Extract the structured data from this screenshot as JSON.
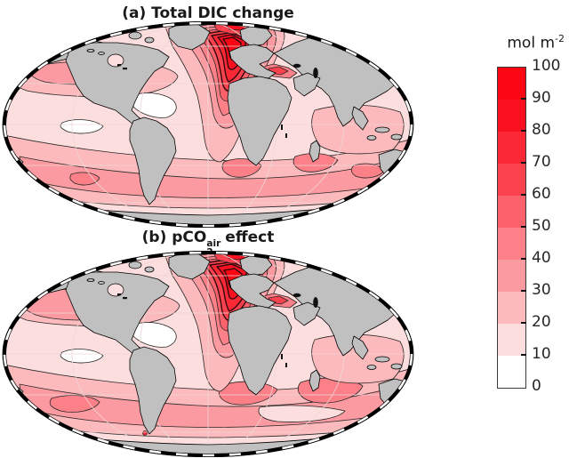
{
  "figure": {
    "background": "#FFFFFF",
    "panels": [
      {
        "id": "a",
        "title": "(a) Total DIC change",
        "projection": "Mollweide global map, gray continents, white-to-red filled contours of ocean DIC change"
      },
      {
        "id": "b",
        "title_pre": "(b) pCO",
        "title_sub": "2",
        "title_sup": "air",
        "title_post": "effect",
        "title_plain": "(b) pCO2^air effect",
        "projection": "Mollweide global map, gray continents, white-to-red filled contours of ocean DIC change"
      }
    ],
    "colorbar": {
      "label": "mol m",
      "label_sup": "-2",
      "label_plain": "mol m^-2",
      "orientation": "vertical, right side, discrete 10-step swatch",
      "ticks": [
        "100",
        "90",
        "80",
        "70",
        "60",
        "50",
        "40",
        "30",
        "20",
        "10",
        "0"
      ],
      "colors_top_to_bottom": [
        "#FB0613",
        "#FB101F",
        "#FB2836",
        "#FA424E",
        "#FA616B",
        "#FB8088",
        "#FB9BA1",
        "#FCBABD",
        "#FDDEDF",
        "#FFFFFF"
      ]
    },
    "colors": {
      "land": "#C0C0C0",
      "coastline": "#000000",
      "contour_line": "#262626",
      "contour_dense": "#33080C",
      "graticule": "#EDD6D6",
      "frame": "alternating black and white dashed ellipse border",
      "ocean_levels": {
        "l0": "#FFFFFF",
        "l10": "#FDDEDF",
        "l20": "#FCBABD",
        "l30": "#FB9BA1",
        "l40": "#FB8088",
        "l50": "#FA616B",
        "l60": "#FA424E",
        "l70": "#FB2836",
        "l80": "#FB101F",
        "l90": "#FB0613"
      }
    }
  },
  "chart_data": [
    {
      "type": "heatmap",
      "subtype": "filled_contour_world_map",
      "projection": "Mollweide (global, centered near 0 deg longitude)",
      "title": "(a) Total DIC change",
      "variable": "column-integrated dissolved inorganic carbon change",
      "units": "mol m^-2",
      "value_range": [
        0,
        100
      ],
      "contour_interval": 10,
      "levels": [
        0,
        10,
        20,
        30,
        40,
        50,
        60,
        70,
        80,
        90,
        100
      ],
      "colormap": "white (0) to saturated red (100), 10 discrete bands",
      "legend_position": "shared vertical colorbar at right",
      "grid": "faint graticule on ocean",
      "regional_values": [
        {
          "region": "Subpolar North Atlantic south of Greenland/Iceland",
          "value": "80-100 (global maximum, tight nested contours)"
        },
        {
          "region": "Nordic and Barents Seas",
          "value": "50-100"
        },
        {
          "region": "Mid-latitude North Atlantic",
          "value": "40-70"
        },
        {
          "region": "Mediterranean Sea",
          "value": "40-80"
        },
        {
          "region": "Subtropical North Atlantic / Caribbean margin",
          "value": "0-10"
        },
        {
          "region": "North Pacific mid-latitude band",
          "value": "20-40"
        },
        {
          "region": "Tropical and eastern Pacific",
          "value": "0-20"
        },
        {
          "region": "Southern Ocean circumpolar band (~35-55S)",
          "value": "20-40"
        },
        {
          "region": "South Atlantic and Agulhas region",
          "value": "30-50"
        },
        {
          "region": "South Indian Ocean subtropics",
          "value": "20-50"
        },
        {
          "region": "Antarctic coastal zone",
          "value": "0-20"
        }
      ]
    },
    {
      "type": "heatmap",
      "subtype": "filled_contour_world_map",
      "projection": "Mollweide (global, centered near 0 deg longitude)",
      "title": "(b) pCO2^air effect",
      "variable": "DIC change attributable to atmospheric pCO2 increase",
      "units": "mol m^-2",
      "value_range": [
        0,
        100
      ],
      "contour_interval": 10,
      "levels": [
        0,
        10,
        20,
        30,
        40,
        50,
        60,
        70,
        80,
        90,
        100
      ],
      "colormap": "white (0) to saturated red (100), 10 discrete bands",
      "legend_position": "shared vertical colorbar at right",
      "grid": "faint graticule on ocean",
      "regional_values": [
        {
          "region": "Subpolar North Atlantic",
          "value": "80-100 (maximum, pattern nearly identical to panel a)"
        },
        {
          "region": "Nordic and Barents Seas",
          "value": "50-100"
        },
        {
          "region": "Mid-latitude North Atlantic",
          "value": "40-70"
        },
        {
          "region": "Mediterranean Sea",
          "value": "40-80"
        },
        {
          "region": "North Pacific mid-latitude band",
          "value": "20-40 (slightly broader than panel a)"
        },
        {
          "region": "Tropical and eastern Pacific",
          "value": "0-20"
        },
        {
          "region": "Southern Ocean circumpolar band",
          "value": "20-40 with larger 40-50 patches than panel a"
        },
        {
          "region": "South Atlantic gyre",
          "value": "40-50"
        },
        {
          "region": "South Indian / Agulhas region",
          "value": "40-50"
        },
        {
          "region": "Antarctic coastal zone",
          "value": "0-20"
        }
      ]
    }
  ]
}
